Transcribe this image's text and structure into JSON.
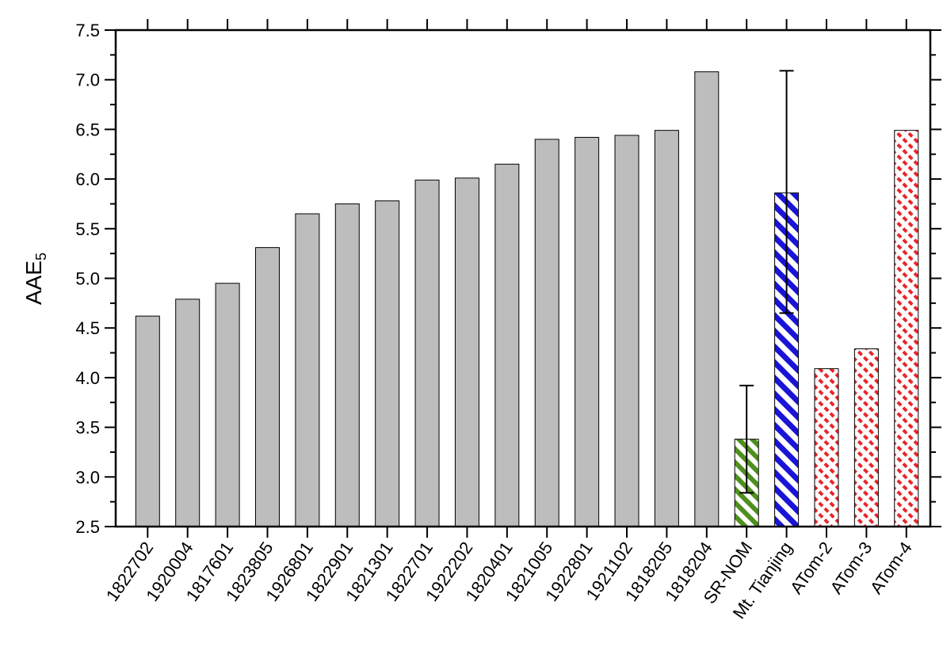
{
  "chart_data": {
    "type": "bar",
    "ylabel": "AAE",
    "ylabel_subscript": "5",
    "ylim": [
      2.5,
      7.5
    ],
    "yticks": [
      "2.5",
      "3.0",
      "3.5",
      "4.0",
      "4.5",
      "5.0",
      "5.5",
      "6.0",
      "6.5",
      "7.0",
      "7.5"
    ],
    "categories": [
      "1822702",
      "1920004",
      "1817601",
      "1823805",
      "1926801",
      "1822901",
      "1821301",
      "1822701",
      "1922202",
      "1820401",
      "1821005",
      "1922801",
      "1921102",
      "1818205",
      "1818204",
      "SR-NOM",
      "Mt. Tianjing",
      "ATom-2",
      "ATom-3",
      "ATom-4"
    ],
    "values": [
      4.62,
      4.79,
      4.95,
      5.31,
      5.65,
      5.75,
      5.78,
      5.99,
      6.01,
      6.15,
      6.4,
      6.42,
      6.44,
      6.49,
      7.08,
      3.38,
      5.86,
      4.09,
      4.29,
      6.49
    ],
    "error_bars": [
      null,
      null,
      null,
      null,
      null,
      null,
      null,
      null,
      null,
      null,
      null,
      null,
      null,
      null,
      null,
      [
        2.84,
        3.92
      ],
      [
        4.65,
        7.09
      ],
      null,
      null,
      null
    ],
    "bar_styles": [
      "solid",
      "solid",
      "solid",
      "solid",
      "solid",
      "solid",
      "solid",
      "solid",
      "solid",
      "solid",
      "solid",
      "solid",
      "solid",
      "solid",
      "solid",
      "green-hatch",
      "blue-hatch",
      "red-dash",
      "red-dash",
      "red-dash"
    ],
    "colors": {
      "solid": "#bdbdbd",
      "green": "#4f8f1f",
      "blue": "#1a14d6",
      "red": "#e8262b"
    },
    "grid": false
  }
}
